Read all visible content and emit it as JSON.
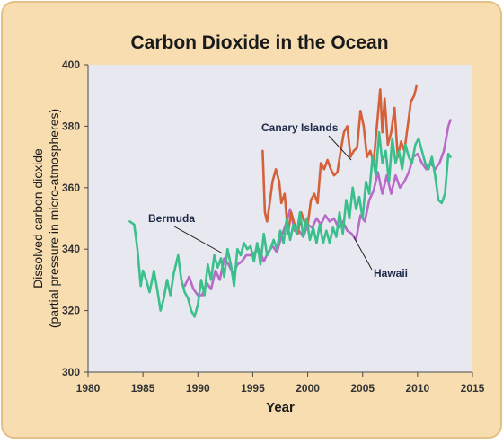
{
  "chart_data": {
    "type": "line",
    "title": "Carbon Dioxide in the Ocean",
    "xlabel": "Year",
    "ylabel_line1": "Dissolved carbon dioxide",
    "ylabel_line2": "(partial pressure in micro-atmospheres)",
    "xlim": [
      1980,
      2015
    ],
    "ylim": [
      300,
      400
    ],
    "xticks": [
      1980,
      1985,
      1990,
      1995,
      2000,
      2005,
      2010,
      2015
    ],
    "yticks": [
      300,
      320,
      340,
      360,
      380,
      400
    ],
    "grid": false,
    "colors": {
      "background": "#f7ddb0",
      "plot_area": "#e8e8f0",
      "Bermuda": "#3bbf8c",
      "Hawaii": "#b96ac9",
      "Canary Islands": "#d5613a"
    },
    "series": [
      {
        "name": "Bermuda",
        "x": [
          1983.8,
          1984.2,
          1984.5,
          1984.8,
          1985.0,
          1985.3,
          1985.6,
          1986.0,
          1986.3,
          1986.6,
          1986.9,
          1987.2,
          1987.5,
          1987.8,
          1988.2,
          1988.5,
          1988.8,
          1989.1,
          1989.4,
          1989.7,
          1990.0,
          1990.3,
          1990.6,
          1990.9,
          1991.2,
          1991.5,
          1991.8,
          1992.1,
          1992.4,
          1992.7,
          1993.0,
          1993.3,
          1993.6,
          1993.9,
          1994.2,
          1994.5,
          1994.8,
          1995.1,
          1995.4,
          1995.7,
          1996.0,
          1996.3,
          1996.6,
          1996.9,
          1997.2,
          1997.5,
          1997.8,
          1998.1,
          1998.4,
          1998.7,
          1999.0,
          1999.3,
          1999.6,
          1999.9,
          2000.2,
          2000.5,
          2000.8,
          2001.1,
          2001.4,
          2001.7,
          2002.0,
          2002.3,
          2002.6,
          2002.9,
          2003.2,
          2003.5,
          2003.8,
          2004.1,
          2004.4,
          2004.7,
          2005.0,
          2005.3,
          2005.6,
          2005.9,
          2006.2,
          2006.5,
          2006.8,
          2007.1,
          2007.4,
          2007.7,
          2008.0,
          2008.3,
          2008.6,
          2008.9,
          2009.2,
          2009.5,
          2009.8,
          2010.1,
          2010.4,
          2010.7,
          2011.0,
          2011.3,
          2011.6,
          2011.9,
          2012.2,
          2012.5,
          2012.8,
          2013.0
        ],
        "values": [
          349,
          348,
          340,
          328,
          333,
          330,
          326,
          333,
          327,
          320,
          324,
          330,
          325,
          332,
          338,
          330,
          326,
          324,
          320,
          318,
          322,
          330,
          325,
          335,
          330,
          338,
          334,
          337,
          331,
          340,
          335,
          328,
          340,
          338,
          342,
          340,
          341,
          336,
          342,
          335,
          345,
          338,
          340,
          343,
          340,
          346,
          342,
          350,
          343,
          348,
          345,
          352,
          344,
          350,
          343,
          347,
          342,
          348,
          342,
          346,
          342,
          347,
          344,
          352,
          345,
          356,
          350,
          360,
          353,
          357,
          350,
          362,
          358,
          370,
          364,
          378,
          368,
          372,
          362,
          376,
          368,
          372,
          366,
          374,
          370,
          368,
          374,
          376,
          372,
          368,
          366,
          370,
          364,
          356,
          355,
          358,
          371,
          370
        ]
      },
      {
        "name": "Hawaii",
        "x": [
          1988.8,
          1989.2,
          1989.6,
          1990.0,
          1990.4,
          1990.8,
          1991.2,
          1991.6,
          1992.0,
          1992.4,
          1992.8,
          1993.2,
          1993.6,
          1994.0,
          1994.4,
          1994.8,
          1995.2,
          1995.6,
          1996.0,
          1996.4,
          1996.8,
          1997.2,
          1997.6,
          1998.0,
          1998.4,
          1998.8,
          1999.2,
          1999.6,
          2000.0,
          2000.4,
          2000.8,
          2001.2,
          2001.6,
          2002.0,
          2002.4,
          2002.8,
          2003.2,
          2003.6,
          2004.0,
          2004.4,
          2004.8,
          2005.2,
          2005.6,
          2006.0,
          2006.4,
          2006.8,
          2007.2,
          2007.6,
          2008.0,
          2008.4,
          2008.8,
          2009.2,
          2009.6,
          2010.0,
          2010.4,
          2010.8,
          2011.2,
          2011.6,
          2012.0,
          2012.4,
          2012.8,
          2013.0
        ],
        "values": [
          328,
          331,
          327,
          325,
          325,
          329,
          327,
          333,
          330,
          337,
          335,
          332,
          335,
          336,
          338,
          338,
          339,
          340,
          336,
          339,
          341,
          339,
          344,
          348,
          353,
          346,
          346,
          344,
          348,
          347,
          350,
          348,
          351,
          349,
          350,
          347,
          349,
          346,
          345,
          343,
          351,
          349,
          356,
          359,
          365,
          358,
          364,
          358,
          364,
          360,
          362,
          365,
          370,
          371,
          368,
          366,
          368,
          366,
          368,
          372,
          380,
          382
        ]
      },
      {
        "name": "Canary Islands",
        "x": [
          1995.9,
          1996.1,
          1996.3,
          1996.5,
          1996.8,
          1997.1,
          1997.4,
          1997.6,
          1997.9,
          1998.2,
          1998.5,
          1998.8,
          1999.1,
          1999.4,
          1999.7,
          2000.0,
          2000.3,
          2000.6,
          2000.9,
          2001.2,
          2001.5,
          2001.8,
          2002.1,
          2002.4,
          2002.7,
          2003.0,
          2003.3,
          2003.6,
          2003.9,
          2004.2,
          2004.5,
          2004.8,
          2005.1,
          2005.4,
          2005.7,
          2006.0,
          2006.3,
          2006.6,
          2006.8,
          2007.0,
          2007.3,
          2007.6,
          2007.9,
          2008.2,
          2008.5,
          2008.8,
          2009.1,
          2009.4,
          2009.7,
          2009.9
        ],
        "values": [
          372,
          352,
          349,
          354,
          362,
          366,
          362,
          355,
          358,
          345,
          352,
          348,
          345,
          352,
          349,
          348,
          356,
          358,
          355,
          368,
          366,
          369,
          366,
          364,
          365,
          372,
          378,
          380,
          370,
          372,
          373,
          385,
          380,
          370,
          372,
          368,
          380,
          392,
          378,
          389,
          374,
          378,
          386,
          370,
          375,
          372,
          380,
          388,
          390,
          393
        ]
      }
    ],
    "annotations": [
      {
        "text": "Bermuda",
        "series": "Bermuda"
      },
      {
        "text": "Hawaii",
        "series": "Hawaii"
      },
      {
        "text": "Canary Islands",
        "series": "Canary Islands"
      }
    ]
  }
}
